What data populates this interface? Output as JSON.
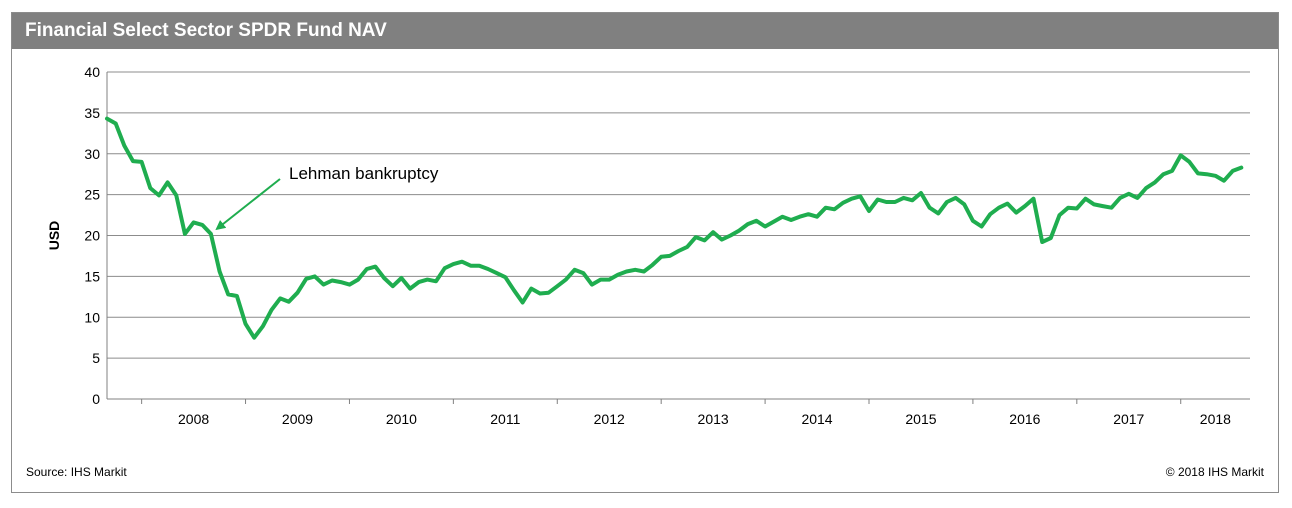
{
  "title": "Financial Select Sector SPDR Fund NAV",
  "source": "Source: IHS Markit",
  "copyright": "© 2018 IHS Markit",
  "colors": {
    "line": "#1fad4f",
    "title_bg": "#808080",
    "grid": "#8c8c8c"
  },
  "chart_data": {
    "type": "line",
    "title": "Financial Select Sector SPDR Fund NAV",
    "xlabel": "",
    "ylabel": "USD",
    "ylim": [
      0,
      40
    ],
    "yticks": [
      0,
      5,
      10,
      15,
      20,
      25,
      30,
      35,
      40
    ],
    "xlim": [
      "2007-09",
      "2018-09"
    ],
    "year_labels": [
      "2008",
      "2009",
      "2010",
      "2011",
      "2012",
      "2013",
      "2014",
      "2015",
      "2016",
      "2017",
      "2018"
    ],
    "grid": "horizontal",
    "annotations": [
      {
        "text": "Lehman bankruptcy",
        "x": "2008-09",
        "y": 20.2
      }
    ],
    "series": [
      {
        "color": "#1fad4f",
        "x": [
          "2007-09",
          "2007-10",
          "2007-11",
          "2007-12",
          "2008-01",
          "2008-02",
          "2008-03",
          "2008-04",
          "2008-05",
          "2008-06",
          "2008-07",
          "2008-08",
          "2008-09",
          "2008-10",
          "2008-11",
          "2008-12",
          "2009-01",
          "2009-02",
          "2009-03",
          "2009-04",
          "2009-05",
          "2009-06",
          "2009-07",
          "2009-08",
          "2009-09",
          "2009-10",
          "2009-11",
          "2009-12",
          "2010-01",
          "2010-02",
          "2010-03",
          "2010-04",
          "2010-05",
          "2010-06",
          "2010-07",
          "2010-08",
          "2010-09",
          "2010-10",
          "2010-11",
          "2010-12",
          "2011-01",
          "2011-02",
          "2011-03",
          "2011-04",
          "2011-05",
          "2011-06",
          "2011-07",
          "2011-08",
          "2011-09",
          "2011-10",
          "2011-11",
          "2011-12",
          "2012-01",
          "2012-02",
          "2012-03",
          "2012-04",
          "2012-05",
          "2012-06",
          "2012-07",
          "2012-08",
          "2012-09",
          "2012-10",
          "2012-11",
          "2012-12",
          "2013-01",
          "2013-02",
          "2013-03",
          "2013-04",
          "2013-05",
          "2013-06",
          "2013-07",
          "2013-08",
          "2013-09",
          "2013-10",
          "2013-11",
          "2013-12",
          "2014-01",
          "2014-02",
          "2014-03",
          "2014-04",
          "2014-05",
          "2014-06",
          "2014-07",
          "2014-08",
          "2014-09",
          "2014-10",
          "2014-11",
          "2014-12",
          "2015-01",
          "2015-02",
          "2015-03",
          "2015-04",
          "2015-05",
          "2015-06",
          "2015-07",
          "2015-08",
          "2015-09",
          "2015-10",
          "2015-11",
          "2015-12",
          "2016-01",
          "2016-02",
          "2016-03",
          "2016-04",
          "2016-05",
          "2016-06",
          "2016-07",
          "2016-08",
          "2016-09",
          "2016-10",
          "2016-11",
          "2016-12",
          "2017-01",
          "2017-02",
          "2017-03",
          "2017-04",
          "2017-05",
          "2017-06",
          "2017-07",
          "2017-08",
          "2017-09",
          "2017-10",
          "2017-11",
          "2017-12",
          "2018-01",
          "2018-02",
          "2018-03",
          "2018-04",
          "2018-05",
          "2018-06",
          "2018-07",
          "2018-08"
        ],
        "values": [
          34.3,
          33.7,
          31.0,
          29.1,
          29.0,
          25.8,
          24.9,
          26.5,
          24.9,
          20.2,
          21.6,
          21.3,
          20.2,
          15.6,
          12.8,
          12.6,
          9.2,
          7.5,
          8.9,
          10.9,
          12.3,
          11.9,
          13.0,
          14.7,
          15.0,
          14.0,
          14.5,
          14.3,
          14.0,
          14.6,
          15.9,
          16.2,
          14.8,
          13.8,
          14.8,
          13.5,
          14.3,
          14.6,
          14.4,
          16.0,
          16.5,
          16.8,
          16.3,
          16.3,
          15.9,
          15.4,
          14.9,
          13.3,
          11.8,
          13.5,
          12.9,
          13.0,
          13.8,
          14.6,
          15.8,
          15.4,
          14.0,
          14.6,
          14.6,
          15.2,
          15.6,
          15.8,
          15.6,
          16.4,
          17.4,
          17.5,
          18.1,
          18.6,
          19.8,
          19.4,
          20.4,
          19.5,
          20.0,
          20.6,
          21.4,
          21.8,
          21.1,
          21.7,
          22.3,
          21.9,
          22.3,
          22.6,
          22.3,
          23.4,
          23.2,
          24.0,
          24.5,
          24.8,
          23.0,
          24.4,
          24.1,
          24.1,
          24.6,
          24.3,
          25.2,
          23.4,
          22.7,
          24.1,
          24.6,
          23.8,
          21.8,
          21.1,
          22.6,
          23.4,
          23.9,
          22.8,
          23.6,
          24.5,
          19.2,
          19.7,
          22.5,
          23.4,
          23.3,
          24.5,
          23.8,
          23.6,
          23.4,
          24.6,
          25.1,
          24.6,
          25.8,
          26.5,
          27.5,
          27.9,
          29.8,
          29.0,
          27.6,
          27.5,
          27.3,
          26.7,
          27.9,
          28.3
        ]
      }
    ]
  }
}
